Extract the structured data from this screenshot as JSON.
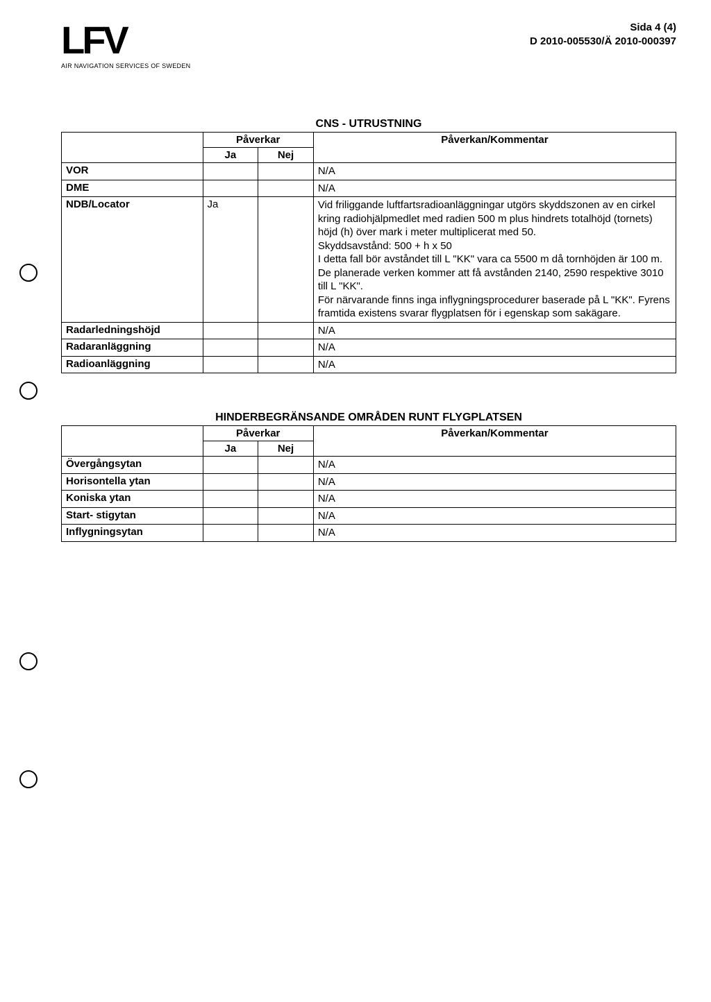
{
  "header": {
    "logo_text": "LFV",
    "logo_sub": "AIR NAVIGATION SERVICES OF SWEDEN",
    "page_label": "Sida 4 (4)",
    "doc_ref": "D 2010-005530/Ä 2010-000397"
  },
  "tables": {
    "cns": {
      "title": "CNS - UTRUSTNING",
      "header_paverkar": "Påverkar",
      "header_ja": "Ja",
      "header_nej": "Nej",
      "header_komm": "Påverkan/Kommentar",
      "rows": [
        {
          "label": "VOR",
          "ja": "",
          "nej": "",
          "komm": "N/A"
        },
        {
          "label": "DME",
          "ja": "",
          "nej": "",
          "komm": "N/A"
        },
        {
          "label": "NDB/Locator",
          "ja": "Ja",
          "nej": "",
          "komm": "Vid friliggande luftfartsradioanläggningar utgörs skyddszonen av en cirkel kring radiohjälpmedlet med radien 500 m plus hindrets totalhöjd (tornets) höjd (h) över mark i meter multiplicerat med 50.\nSkyddsavstånd: 500 + h x 50\nI detta fall bör avståndet till L \"KK\" vara ca 5500 m då tornhöjden är 100 m. De planerade verken kommer att få avstånden 2140, 2590 respektive 3010 till L \"KK\".\nFör närvarande finns inga inflygningsprocedurer baserade på L \"KK\". Fyrens framtida existens svarar flygplatsen för i egenskap som sakägare."
        },
        {
          "label": "Radarledningshöjd",
          "ja": "",
          "nej": "",
          "komm": "N/A"
        },
        {
          "label": "Radaranläggning",
          "ja": "",
          "nej": "",
          "komm": "N/A"
        },
        {
          "label": "Radioanläggning",
          "ja": "",
          "nej": "",
          "komm": "N/A"
        }
      ]
    },
    "hinder": {
      "title": "HINDERBEGRÄNSANDE OMRÅDEN RUNT FLYGPLATSEN",
      "header_paverkar": "Påverkar",
      "header_ja": "Ja",
      "header_nej": "Nej",
      "header_komm": "Påverkan/Kommentar",
      "rows": [
        {
          "label": "Övergångsytan",
          "ja": "",
          "nej": "",
          "komm": "N/A"
        },
        {
          "label": "Horisontella ytan",
          "ja": "",
          "nej": "",
          "komm": "N/A"
        },
        {
          "label": "Koniska ytan",
          "ja": "",
          "nej": "",
          "komm": "N/A"
        },
        {
          "label": "Start- stigytan",
          "ja": "",
          "nej": "",
          "komm": "N/A"
        },
        {
          "label": "Inflygningsytan",
          "ja": "",
          "nej": "",
          "komm": "N/A"
        }
      ]
    }
  },
  "punch_hole_positions": [
    380,
    550,
    940,
    1110
  ]
}
